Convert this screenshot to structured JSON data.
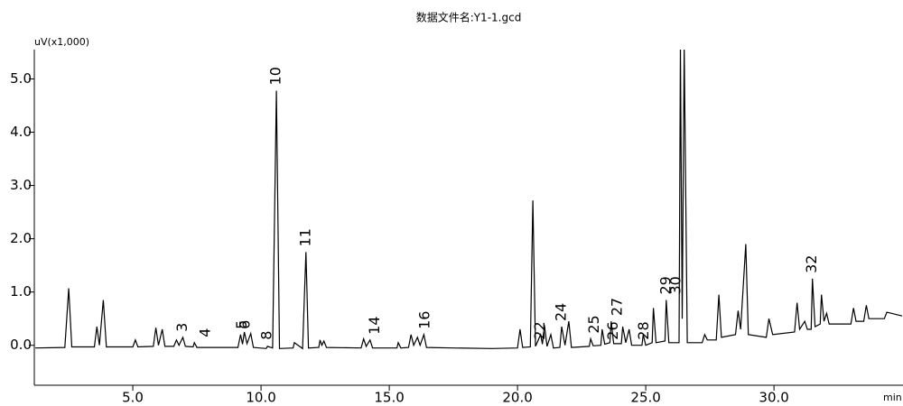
{
  "chart_data": {
    "type": "line",
    "title": "数据文件名:Y1-1.gcd",
    "y_label": "uV(x1,000)",
    "x_label": "min",
    "color": "#000000",
    "xlim": [
      1.16,
      35.03
    ],
    "ylim": [
      -0.75,
      5.55
    ],
    "xticks": [
      {
        "value": 5,
        "label": "5.0"
      },
      {
        "value": 10,
        "label": "10.0"
      },
      {
        "value": 15,
        "label": "15.0"
      },
      {
        "value": 20,
        "label": "20.0"
      },
      {
        "value": 25,
        "label": "25.0"
      },
      {
        "value": 30,
        "label": "30.0"
      }
    ],
    "yticks": [
      {
        "value": 0,
        "label": "0.0"
      },
      {
        "value": 1,
        "label": "1.0"
      },
      {
        "value": 2,
        "label": "2.0"
      },
      {
        "value": 3,
        "label": "3.0"
      },
      {
        "value": 4,
        "label": "4.0"
      },
      {
        "value": 5,
        "label": "5.0"
      }
    ],
    "x": [
      1.2,
      2.35,
      2.5,
      2.62,
      3.5,
      3.6,
      3.7,
      3.85,
      3.97,
      5.0,
      5.1,
      5.2,
      5.8,
      5.9,
      6.0,
      6.15,
      6.25,
      6.6,
      6.7,
      6.8,
      6.95,
      7.05,
      7.35,
      7.4,
      7.5,
      9.1,
      9.2,
      9.28,
      9.35,
      9.45,
      9.6,
      9.7,
      10.2,
      10.25,
      10.45,
      10.6,
      10.72,
      11.25,
      11.3,
      11.62,
      11.75,
      11.85,
      12.25,
      12.3,
      12.37,
      12.45,
      12.55,
      13.9,
      14.0,
      14.1,
      14.25,
      14.35,
      15.3,
      15.35,
      15.45,
      15.75,
      15.85,
      15.95,
      16.1,
      16.2,
      16.35,
      16.45,
      17.5,
      19.0,
      20.0,
      20.1,
      20.2,
      20.5,
      20.6,
      20.7,
      20.9,
      20.97,
      21.05,
      21.15,
      21.3,
      21.4,
      21.65,
      21.72,
      21.85,
      22.0,
      22.1,
      22.8,
      22.85,
      22.95,
      23.25,
      23.3,
      23.4,
      23.6,
      23.65,
      23.75,
      24.05,
      24.1,
      24.22,
      24.35,
      24.45,
      24.85,
      24.9,
      25.0,
      25.25,
      25.3,
      25.4,
      25.75,
      25.8,
      25.9,
      26.3,
      26.35,
      26.42,
      26.5,
      26.62,
      27.2,
      27.3,
      27.4,
      27.75,
      27.85,
      27.95,
      28.5,
      28.6,
      28.7,
      28.9,
      29.0,
      29.7,
      29.8,
      29.95,
      30.8,
      30.9,
      31.0,
      31.2,
      31.3,
      31.45,
      31.5,
      31.6,
      31.8,
      31.85,
      31.95,
      32.05,
      32.15,
      33.0,
      33.1,
      33.2,
      33.5,
      33.6,
      33.7,
      34.3,
      34.4,
      35.0
    ],
    "values": [
      -0.05,
      -0.04,
      1.07,
      -0.03,
      -0.03,
      0.35,
      0.0,
      0.85,
      -0.03,
      -0.03,
      0.1,
      -0.03,
      -0.02,
      0.33,
      0.0,
      0.3,
      -0.02,
      -0.02,
      0.1,
      0.0,
      0.15,
      -0.02,
      -0.03,
      0.05,
      -0.04,
      -0.04,
      0.2,
      0.02,
      0.25,
      0.03,
      0.22,
      -0.04,
      -0.06,
      -0.02,
      -0.05,
      4.78,
      -0.06,
      -0.05,
      0.05,
      -0.06,
      1.75,
      -0.05,
      -0.04,
      0.1,
      0.0,
      0.08,
      -0.04,
      -0.05,
      0.12,
      -0.02,
      0.1,
      -0.05,
      -0.05,
      0.05,
      -0.05,
      -0.04,
      0.2,
      0.0,
      0.15,
      0.0,
      0.2,
      -0.04,
      -0.05,
      -0.06,
      -0.05,
      0.3,
      -0.04,
      -0.03,
      2.72,
      -0.02,
      0.2,
      0.02,
      0.38,
      -0.02,
      0.2,
      -0.05,
      -0.04,
      0.35,
      0.0,
      0.45,
      -0.04,
      -0.02,
      0.12,
      -0.01,
      0.0,
      0.3,
      0.02,
      0.05,
      0.45,
      0.03,
      0.03,
      0.35,
      0.05,
      0.3,
      0.0,
      0.0,
      0.2,
      0.0,
      0.05,
      0.7,
      0.05,
      0.08,
      0.85,
      0.05,
      0.05,
      5.6,
      0.5,
      5.6,
      0.05,
      0.05,
      0.2,
      0.1,
      0.1,
      0.95,
      0.15,
      0.2,
      0.65,
      0.3,
      1.9,
      0.2,
      0.15,
      0.5,
      0.2,
      0.25,
      0.8,
      0.3,
      0.45,
      0.3,
      0.3,
      1.25,
      0.35,
      0.4,
      0.95,
      0.45,
      0.6,
      0.4,
      0.4,
      0.7,
      0.45,
      0.45,
      0.75,
      0.5,
      0.5,
      0.62,
      0.55
    ],
    "annotations": [
      {
        "text": "3",
        "x": 6.95,
        "y": 0.15
      },
      {
        "text": "4",
        "x": 7.85,
        "y": 0.05
      },
      {
        "text": "5",
        "x": 9.28,
        "y": 0.2
      },
      {
        "text": "6",
        "x": 9.4,
        "y": 0.2
      },
      {
        "text": "8",
        "x": 10.25,
        "y": 0.0
      },
      {
        "text": "10",
        "x": 10.6,
        "y": 4.78
      },
      {
        "text": "11",
        "x": 11.75,
        "y": 1.75
      },
      {
        "text": "14",
        "x": 14.45,
        "y": 0.1
      },
      {
        "text": "16",
        "x": 16.4,
        "y": 0.2
      },
      {
        "text": "22",
        "x": 20.9,
        "y": 0.0
      },
      {
        "text": "24",
        "x": 21.72,
        "y": 0.35
      },
      {
        "text": "25",
        "x": 23.0,
        "y": 0.12
      },
      {
        "text": "26",
        "x": 23.75,
        "y": 0.0
      },
      {
        "text": "27",
        "x": 23.9,
        "y": 0.45
      },
      {
        "text": "28",
        "x": 24.95,
        "y": 0.0
      },
      {
        "text": "29",
        "x": 25.8,
        "y": 0.85
      },
      {
        "text": "30",
        "x": 26.2,
        "y": 0.85
      },
      {
        "text": "32",
        "x": 31.5,
        "y": 1.25
      }
    ]
  }
}
